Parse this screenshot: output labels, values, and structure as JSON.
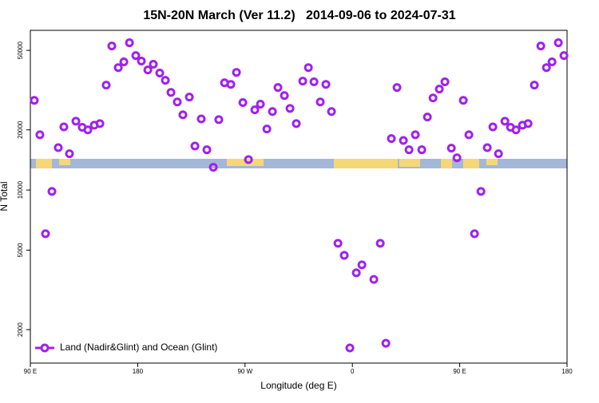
{
  "chart_data": {
    "type": "scatter",
    "title": "15N-20N March (Ver 11.2)   2014-09-06 to 2024-07-31",
    "x_label": "Longitude (deg E)",
    "y_label": "N Total",
    "y_scale": "log",
    "legend": "lower left",
    "xlim": [
      90,
      540
    ],
    "xticks": [
      {
        "value": 90,
        "label": "90 E"
      },
      180,
      {
        "value": 270,
        "label": "90 W"
      },
      {
        "value": 360,
        "label": "0"
      },
      {
        "value": 450,
        "label": "90 E"
      },
      {
        "value": 540,
        "label": "180"
      }
    ],
    "ylim": [
      1360,
      63000
    ],
    "yticks": [
      2000,
      5000,
      10000,
      20000,
      50000
    ],
    "x": [
      93.3,
      98.0,
      102.7,
      108.1,
      113.4,
      118.1,
      122.8,
      128.2,
      133.5,
      138.2,
      143.6,
      148.3,
      153.6,
      158.3,
      163.7,
      168.4,
      173.1,
      178.4,
      183.1,
      188.5,
      193.1,
      198.5,
      203.2,
      207.9,
      213.2,
      217.9,
      223.3,
      228.0,
      233.3,
      238.0,
      243.4,
      248.0,
      252.8,
      258.1,
      262.8,
      268.2,
      272.9,
      278.2,
      282.9,
      288.3,
      293.0,
      297.6,
      303.0,
      307.7,
      313.0,
      318.4,
      323.1,
      327.8,
      333.1,
      337.8,
      342.5,
      347.9,
      353.2,
      357.9,
      363.3,
      368.0,
      378.0,
      383.4,
      388.1,
      392.7,
      397.4,
      402.8,
      407.5,
      412.8,
      418.2,
      422.9,
      427.6,
      432.9,
      437.6,
      443.0,
      447.7,
      453.0,
      457.7,
      462.4,
      467.8,
      473.1,
      477.8,
      482.5,
      487.9,
      492.6,
      497.2,
      502.6,
      507.3,
      512.6,
      518.0,
      522.7,
      527.4,
      532.7,
      537.4
    ],
    "series": [
      {
        "name": "Land (Nadir&Glint) and Ocean (Glint)",
        "color": "#a020f0",
        "values": [
          28100,
          18900,
          6040,
          9840,
          16300,
          20700,
          15200,
          22100,
          20600,
          20000,
          21100,
          21500,
          33500,
          52600,
          41000,
          43800,
          54600,
          47100,
          44200,
          39900,
          42600,
          38500,
          35400,
          30800,
          27600,
          23800,
          29200,
          16600,
          22700,
          15900,
          13000,
          22500,
          34400,
          33800,
          38800,
          27400,
          14200,
          25200,
          26900,
          20200,
          24700,
          32600,
          29700,
          25600,
          21500,
          35100,
          41000,
          34800,
          27600,
          33800,
          24700,
          5410,
          4710,
          1620,
          3850,
          4220,
          3570,
          5410,
          1710,
          18100,
          32600,
          17700,
          15900,
          18900,
          15900,
          23200,
          28900,
          32000,
          34800,
          16200,
          14500,
          28100,
          18900,
          6040,
          9840,
          16300,
          20700,
          15200,
          22100,
          20600,
          20000,
          21100,
          21500,
          33500,
          52600,
          41000,
          43800,
          54600,
          47100
        ]
      }
    ]
  }
}
